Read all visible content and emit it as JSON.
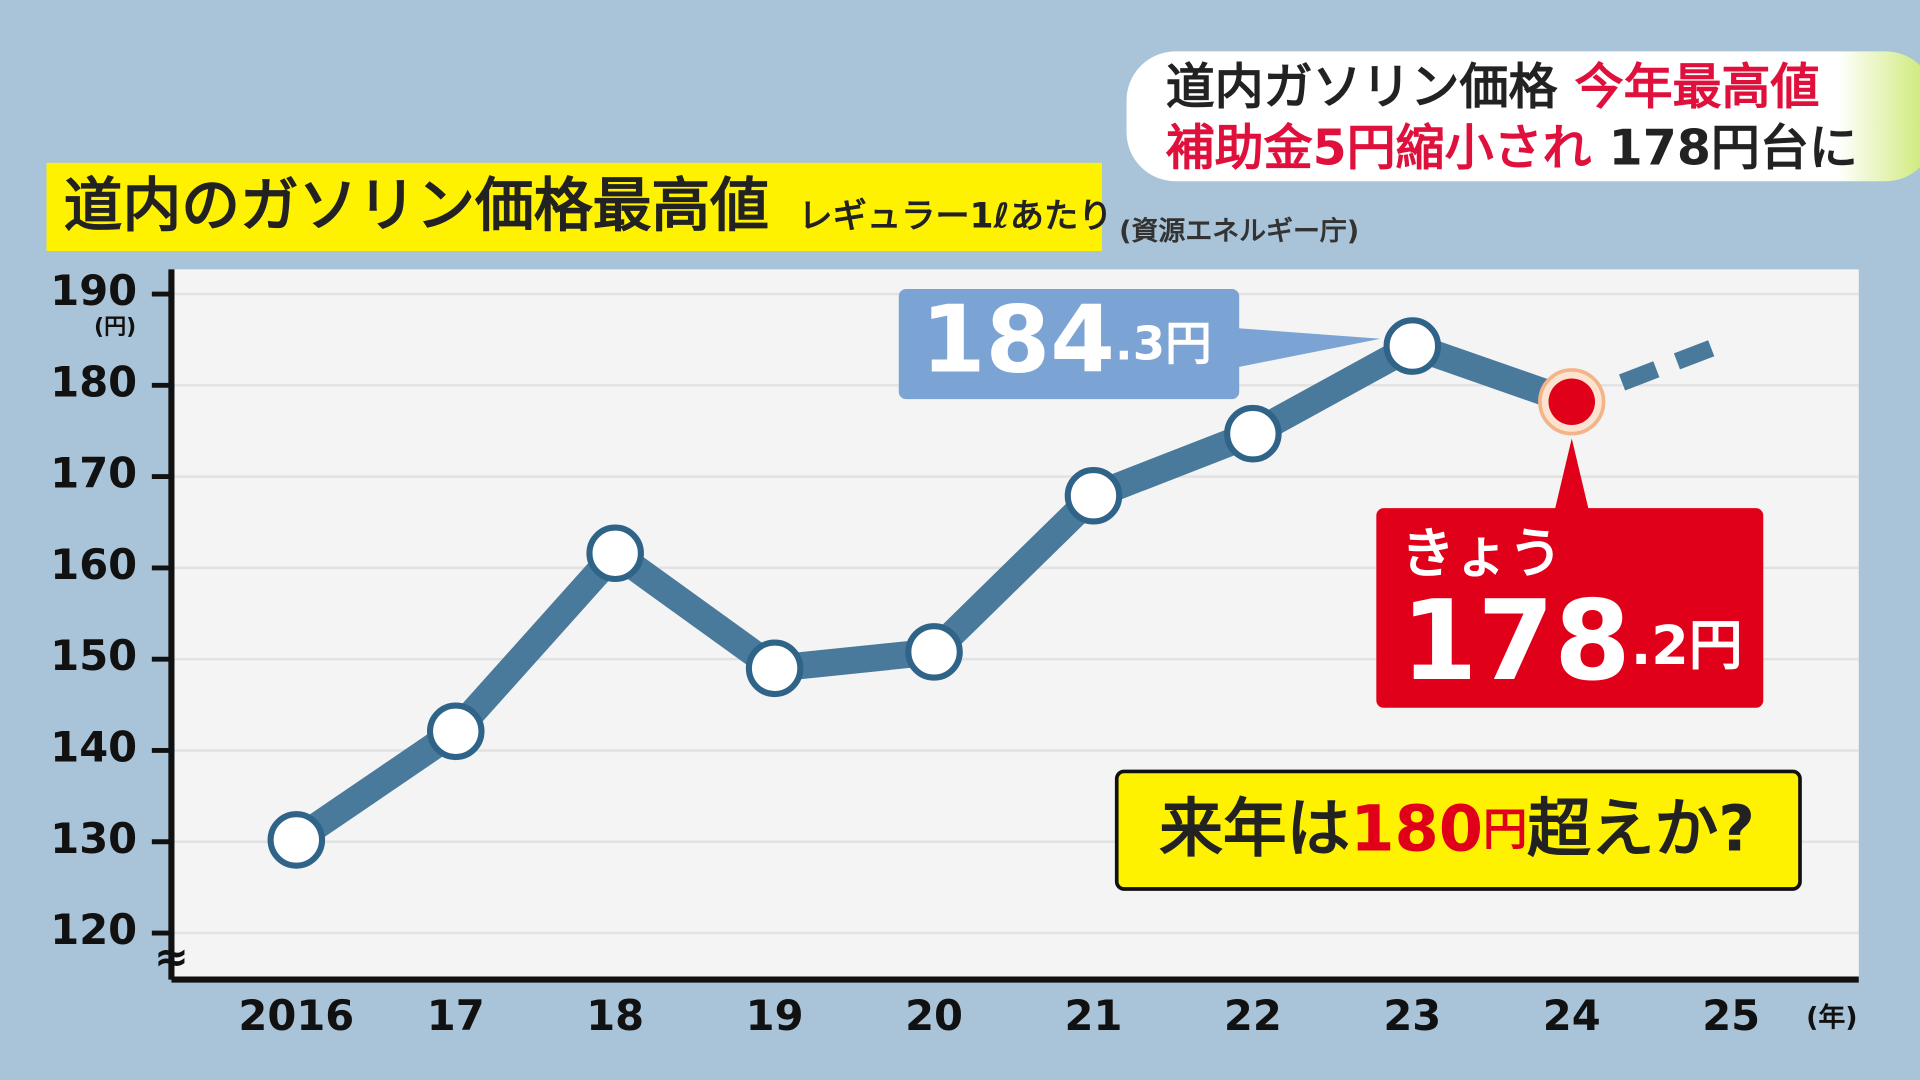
{
  "chart_data": {
    "type": "line",
    "title": "道内のガソリン価格最高値",
    "subtitle": "レギュラー1ℓあたり",
    "source": "(資源エネルギー庁)",
    "headline": [
      [
        {
          "text": "道内ガソリン価格",
          "color": "#222222"
        },
        {
          "text": "今年最高値",
          "color": "#e0103c"
        }
      ],
      [
        {
          "text": "補助金5円縮小され",
          "color": "#e0103c"
        },
        {
          "text": "178円台に",
          "color": "#222222"
        }
      ]
    ],
    "categories": [
      "2016",
      "17",
      "18",
      "19",
      "20",
      "21",
      "22",
      "23",
      "24",
      "25"
    ],
    "x_label": "(年)",
    "y_label": "(円)",
    "ylim": [
      114.9,
      192.7
    ],
    "yticks": [
      120,
      130,
      140,
      150,
      160,
      170,
      180,
      190
    ],
    "grid": true,
    "axis_break": "≈",
    "series": [
      {
        "color": "#4a7a9b",
        "values": [
          130.2,
          142.1,
          161.6,
          149.0,
          150.8,
          167.9,
          174.7,
          184.3,
          178.2,
          null
        ],
        "value_labels": [
          null,
          null,
          null,
          null,
          null,
          null,
          null,
          "184.3円",
          "178.2円",
          null
        ]
      },
      {
        "color": "#4a7a9b",
        "dashed": true,
        "values": [
          null,
          null,
          null,
          null,
          null,
          null,
          null,
          null,
          178.2,
          184.9
        ]
      }
    ],
    "today_label": "きょう",
    "forecast_note": [
      "来年は",
      "180",
      "円",
      "超えか?"
    ]
  }
}
